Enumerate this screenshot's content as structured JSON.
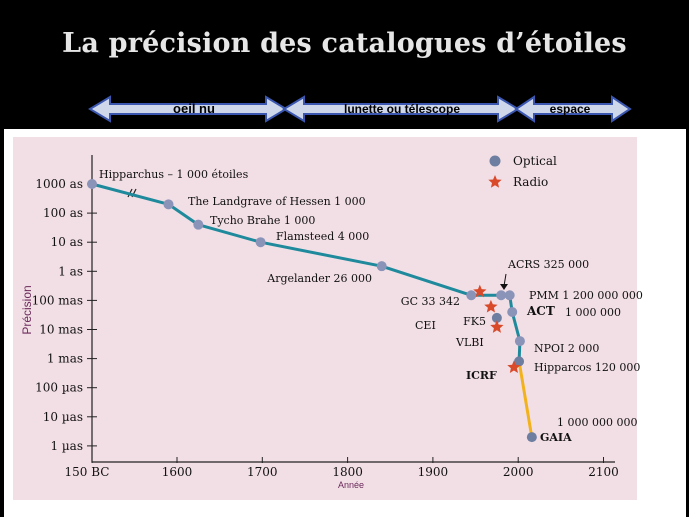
{
  "title": "La précision des catalogues d’étoiles",
  "eras": [
    {
      "label": "oeil nu"
    },
    {
      "label": "lunette ou télescope"
    },
    {
      "label": "espace"
    }
  ],
  "colors": {
    "background": "#000000",
    "plot_background": "#f2dfe6",
    "curve": "#1f8a9c",
    "future": "#f2b21c",
    "optical": "#8a93b8",
    "radio": "#d94a2a",
    "arrow_fill": "#cfd8ea",
    "axis_label": "#6b2a5a"
  },
  "chart_data": {
    "type": "scatter",
    "xlabel": "Année",
    "ylabel": "Précision",
    "x_ticks": [
      "150 BC",
      "1600",
      "1700",
      "1800",
      "1900",
      "2000",
      "2100"
    ],
    "y_ticks": [
      "1000 as",
      "100 as",
      "10 as",
      "1 as",
      "100 mas",
      "10 mas",
      "1 mas",
      "100 µas",
      "10 µas",
      "1 µas"
    ],
    "y_scale": "log",
    "axis_break": true,
    "legend": [
      {
        "name": "Optical",
        "marker": "circle"
      },
      {
        "name": "Radio",
        "marker": "star"
      }
    ],
    "legend_position": "top-right",
    "optical_points": [
      {
        "label": "Hipparchus – 1 000 étoiles",
        "x": -150,
        "y_arcsec": 1000
      },
      {
        "label": "The Landgrave of Hessen 1 000",
        "x": 1590,
        "y_arcsec": 200
      },
      {
        "label": "Tycho Brahe 1 000",
        "x": 1625,
        "y_arcsec": 40
      },
      {
        "label": "Flamsteed 4 000",
        "x": 1698,
        "y_arcsec": 10
      },
      {
        "label": "Argelander 26 000",
        "x": 1840,
        "y_arcsec": 1.5
      },
      {
        "label": "GC 33 342",
        "x": 1945,
        "y_arcsec": 0.15
      },
      {
        "label": "FK5",
        "x": 1975,
        "y_arcsec": 0.025
      },
      {
        "label": "ACRS 325 000",
        "x": 1980,
        "y_arcsec": 0.15
      },
      {
        "label": "PMM 1 200 000 000",
        "x": 1990,
        "y_arcsec": 0.15
      },
      {
        "label": "ACT 1 000 000",
        "x": 1993,
        "y_arcsec": 0.04
      },
      {
        "label": "NPOI 2 000",
        "x": 2002,
        "y_arcsec": 0.004
      },
      {
        "label": "Hipparcos 120 000",
        "x": 2001,
        "y_arcsec": 0.0008
      },
      {
        "label": "GAIA",
        "x": 2016,
        "y_arcsec": 2e-06
      }
    ],
    "radio_points": [
      {
        "label": "CEI",
        "x": 1955,
        "y_arcsec": 0.2
      },
      {
        "label": "",
        "x": 1968,
        "y_arcsec": 0.06
      },
      {
        "label": "VLBI",
        "x": 1975,
        "y_arcsec": 0.012
      },
      {
        "label": "ICRF",
        "x": 1995,
        "y_arcsec": 0.0005
      }
    ],
    "annotations": [
      "1 000 000 000"
    ]
  }
}
